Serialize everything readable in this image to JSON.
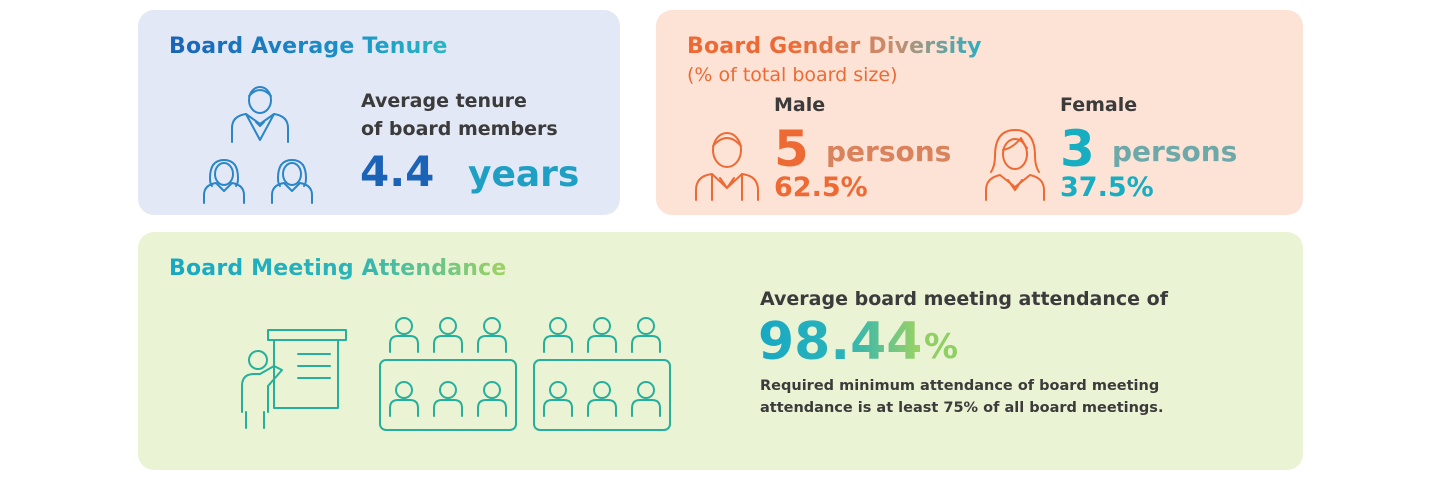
{
  "tenure": {
    "title": "Board Average Tenure",
    "line1": "Average tenure",
    "line2": "of board members",
    "value": "4.4",
    "unit": "years",
    "icon": "board-members-icon"
  },
  "gender": {
    "title": "Board Gender Diversity",
    "subtitle": "(% of total board size)",
    "male": {
      "label": "Male",
      "count": "5",
      "unit": "persons",
      "percent": "62.5%",
      "icon": "male-person-icon"
    },
    "female": {
      "label": "Female",
      "count": "3",
      "unit": "persons",
      "percent": "37.5%",
      "icon": "female-person-icon"
    }
  },
  "attendance": {
    "title": "Board Meeting Attendance",
    "lead": "Average board meeting attendance of",
    "value": "98.44",
    "unit": "%",
    "note_line1": "Required minimum attendance of board meeting",
    "note_line2": "attendance is at least 75% of all board meetings.",
    "icon": "meeting-room-icon"
  },
  "colors": {
    "tenure_bg": "#e3e8f6",
    "gender_bg": "#fde3d6",
    "attendance_bg": "#ebf3d5",
    "blue": "#1a63b6",
    "orange": "#ee6a35",
    "teal": "#17a8c4",
    "green": "#26b09c"
  }
}
